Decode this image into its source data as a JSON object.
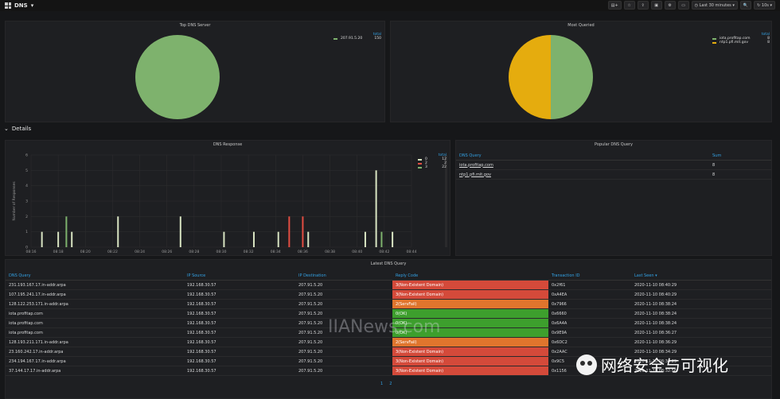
{
  "header": {
    "title": "DNS",
    "time_range": "Last 30 minutes",
    "refresh": "10s"
  },
  "panels": {
    "top_dns_server": {
      "title": "Top DNS Server",
      "legend_header": "total",
      "items": [
        {
          "name": "207.91.5.20",
          "value": "150",
          "color": "#7eb26d"
        }
      ]
    },
    "most_queried": {
      "title": "Most Queried",
      "legend_header": "total",
      "items": [
        {
          "name": "iota.profitap.com",
          "value": "8",
          "color": "#7eb26d"
        },
        {
          "name": "ntp1.pfi.mit.gov",
          "value": "8",
          "color": "#e5ac0e"
        }
      ]
    },
    "dns_response": {
      "title": "DNS Response",
      "ylabel": "Number of Responses",
      "legend_header": "total"
    },
    "popular_dns_query": {
      "title": "Popular DNS Query",
      "col_server": "DNS Query",
      "col_sum": "Sum",
      "rows": [
        {
          "query": "iota.profitap.com",
          "sum": "8"
        },
        {
          "query": "ntp1.pfi.mit.gov",
          "sum": "8"
        }
      ]
    },
    "latest_dns_query": {
      "title": "Latest DNS Query"
    }
  },
  "section": {
    "title": "Details"
  },
  "table": {
    "headers": [
      "DNS Query",
      "IP Source",
      "IP Destination",
      "Reply Code",
      "Transaction ID",
      "Last Seen"
    ],
    "rows": [
      {
        "query": "231.193.167.17.in-addr.arpa",
        "src": "192.168.30.57",
        "dst": "207.91.5.20",
        "code": "3(Non-Existent Domain)",
        "code_color": "#d44a3a",
        "tid": "0x2f61",
        "seen": "2020-11-10 08:40:29"
      },
      {
        "query": "107.195.241.17.in-addr.arpa",
        "src": "192.168.30.57",
        "dst": "207.91.5.20",
        "code": "3(Non-Existent Domain)",
        "code_color": "#d44a3a",
        "tid": "0xA4EA",
        "seen": "2020-11-10 08:40:29"
      },
      {
        "query": "128.122.253.171.in-addr.arpa",
        "src": "192.168.30.57",
        "dst": "207.91.5.20",
        "code": "2(ServFail)",
        "code_color": "#e0752d",
        "tid": "0x7966",
        "seen": "2020-11-10 08:38:24"
      },
      {
        "query": "iota.profitap.com",
        "src": "192.168.30.57",
        "dst": "207.91.5.20",
        "code": "0(OK)",
        "code_color": "#3d9f2d",
        "tid": "0x6660",
        "seen": "2020-11-10 08:38:24"
      },
      {
        "query": "iota.profitap.com",
        "src": "192.168.30.57",
        "dst": "207.91.5.20",
        "code": "0(OK)",
        "code_color": "#3d9f2d",
        "tid": "0x6A4A",
        "seen": "2020-11-10 08:38:24"
      },
      {
        "query": "iota.profitap.com",
        "src": "192.168.30.57",
        "dst": "207.91.5.20",
        "code": "0(OK)",
        "code_color": "#3d9f2d",
        "tid": "0x9E9A",
        "seen": "2020-11-10 08:36:27"
      },
      {
        "query": "128.193.211.171.in-addr.arpa",
        "src": "192.168.30.57",
        "dst": "207.91.5.20",
        "code": "2(ServFail)",
        "code_color": "#e0752d",
        "tid": "0x6DC2",
        "seen": "2020-11-10 08:36:29"
      },
      {
        "query": "23.160.242.17.in-addr.arpa",
        "src": "192.168.30.57",
        "dst": "207.91.5.20",
        "code": "3(Non-Existent Domain)",
        "code_color": "#d44a3a",
        "tid": "0x2AAC",
        "seen": "2020-11-10 08:34:29"
      },
      {
        "query": "234.194.167.17.in-addr.arpa",
        "src": "192.168.30.57",
        "dst": "207.91.5.20",
        "code": "3(Non-Existent Domain)",
        "code_color": "#d44a3a",
        "tid": "0x9C5",
        "seen": "2020-11-10 08:34:29"
      },
      {
        "query": "37.144.17.17.in-addr.arpa",
        "src": "192.168.30.57",
        "dst": "207.91.5.20",
        "code": "3(Non-Existent Domain)",
        "code_color": "#d44a3a",
        "tid": "0x1156",
        "seen": "2020-11-10 08:32:56"
      }
    ]
  },
  "pager": [
    "1",
    "2"
  ],
  "watermark": "IIANews.com",
  "wechat_label": "网络安全与可视化",
  "chart_data": {
    "type": "bar",
    "x": [
      "08:16",
      "08:18",
      "08:20",
      "08:22",
      "08:24",
      "08:26",
      "08:28",
      "08:30",
      "08:32",
      "08:34",
      "08:36",
      "08:38",
      "08:40",
      "08:42",
      "08:44"
    ],
    "ylabel": "Number of Responses",
    "ylim": [
      0,
      6
    ],
    "yticks": [
      "0",
      "1",
      "2",
      "3",
      "4",
      "5",
      "6"
    ],
    "series": [
      {
        "name": "0",
        "color": "#d8e4c2",
        "total": "12",
        "points": [
          [
            0.4,
            1
          ],
          [
            1.0,
            1
          ],
          [
            1.5,
            1
          ],
          [
            3.2,
            2
          ],
          [
            5.5,
            2
          ],
          [
            7.1,
            1
          ],
          [
            8.2,
            1
          ],
          [
            9.1,
            1
          ],
          [
            10.2,
            1
          ],
          [
            12.3,
            1
          ],
          [
            12.7,
            5
          ],
          [
            13.3,
            1
          ]
        ]
      },
      {
        "name": "2",
        "color": "#e24d42",
        "total": "2",
        "points": [
          [
            9.5,
            2
          ],
          [
            10.0,
            2
          ]
        ]
      },
      {
        "name": "3",
        "color": "#7eb26d",
        "total": "22",
        "points": [
          [
            1.3,
            2
          ],
          [
            12.9,
            1
          ]
        ]
      }
    ]
  }
}
